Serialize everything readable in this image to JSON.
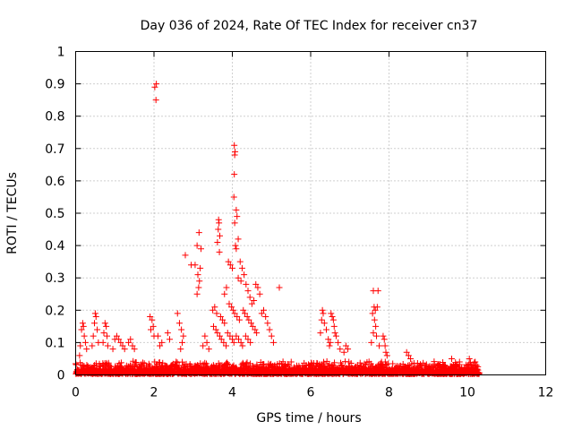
{
  "chart_data": {
    "type": "scatter",
    "title": "Day 036 of 2024, Rate Of TEC Index for receiver cn37",
    "xlabel": "GPS time / hours",
    "ylabel": "ROTI / TECUs",
    "xlim": [
      0,
      12
    ],
    "ylim": [
      0,
      1
    ],
    "grid": true,
    "marker": "+",
    "marker_color": "#ff0000",
    "x_ticks": [
      "0",
      "2",
      "4",
      "6",
      "8",
      "10",
      "12"
    ],
    "y_ticks": [
      "0",
      "0.1",
      "0.2",
      "0.3",
      "0.4",
      "0.5",
      "0.6",
      "0.7",
      "0.8",
      "0.9",
      "1"
    ],
    "series": [
      {
        "name": "cn37",
        "points": [
          [
            2.02,
            0.89
          ],
          [
            2.06,
            0.9
          ],
          [
            2.05,
            0.85
          ],
          [
            4.05,
            0.71
          ],
          [
            4.06,
            0.68
          ],
          [
            4.07,
            0.69
          ],
          [
            4.05,
            0.62
          ],
          [
            4.04,
            0.55
          ],
          [
            4.1,
            0.51
          ],
          [
            4.12,
            0.49
          ],
          [
            4.06,
            0.47
          ],
          [
            4.15,
            0.42
          ],
          [
            4.08,
            0.4
          ],
          [
            4.1,
            0.39
          ],
          [
            3.65,
            0.48
          ],
          [
            3.66,
            0.47
          ],
          [
            3.64,
            0.45
          ],
          [
            3.68,
            0.43
          ],
          [
            3.62,
            0.41
          ],
          [
            3.67,
            0.38
          ],
          [
            3.15,
            0.44
          ],
          [
            3.1,
            0.4
          ],
          [
            3.2,
            0.39
          ],
          [
            3.05,
            0.34
          ],
          [
            3.18,
            0.33
          ],
          [
            3.12,
            0.31
          ],
          [
            3.16,
            0.29
          ],
          [
            3.14,
            0.27
          ],
          [
            3.1,
            0.25
          ],
          [
            2.8,
            0.37
          ],
          [
            2.95,
            0.34
          ],
          [
            3.9,
            0.35
          ],
          [
            3.95,
            0.34
          ],
          [
            4.0,
            0.33
          ],
          [
            4.2,
            0.35
          ],
          [
            4.25,
            0.33
          ],
          [
            4.3,
            0.31
          ],
          [
            4.15,
            0.3
          ],
          [
            4.22,
            0.29
          ],
          [
            4.35,
            0.28
          ],
          [
            3.85,
            0.27
          ],
          [
            4.4,
            0.26
          ],
          [
            3.8,
            0.25
          ],
          [
            4.45,
            0.24
          ],
          [
            4.6,
            0.28
          ],
          [
            4.65,
            0.27
          ],
          [
            4.7,
            0.25
          ],
          [
            4.55,
            0.23
          ],
          [
            4.5,
            0.22
          ],
          [
            5.2,
            0.27
          ],
          [
            3.55,
            0.21
          ],
          [
            3.5,
            0.2
          ],
          [
            3.6,
            0.19
          ],
          [
            3.7,
            0.18
          ],
          [
            3.75,
            0.17
          ],
          [
            3.8,
            0.16
          ],
          [
            3.92,
            0.22
          ],
          [
            3.98,
            0.21
          ],
          [
            4.02,
            0.2
          ],
          [
            4.06,
            0.19
          ],
          [
            4.12,
            0.18
          ],
          [
            4.18,
            0.17
          ],
          [
            4.28,
            0.2
          ],
          [
            4.32,
            0.19
          ],
          [
            4.38,
            0.18
          ],
          [
            4.42,
            0.17
          ],
          [
            4.48,
            0.16
          ],
          [
            4.52,
            0.15
          ],
          [
            4.58,
            0.14
          ],
          [
            4.62,
            0.13
          ],
          [
            3.52,
            0.15
          ],
          [
            3.58,
            0.14
          ],
          [
            3.62,
            0.13
          ],
          [
            3.68,
            0.12
          ],
          [
            3.72,
            0.11
          ],
          [
            3.78,
            0.1
          ],
          [
            3.84,
            0.09
          ],
          [
            3.88,
            0.13
          ],
          [
            3.94,
            0.12
          ],
          [
            4.0,
            0.11
          ],
          [
            4.04,
            0.1
          ],
          [
            4.1,
            0.12
          ],
          [
            4.16,
            0.11
          ],
          [
            4.22,
            0.1
          ],
          [
            4.26,
            0.09
          ],
          [
            4.34,
            0.12
          ],
          [
            4.4,
            0.11
          ],
          [
            4.46,
            0.1
          ],
          [
            4.8,
            0.2
          ],
          [
            4.85,
            0.18
          ],
          [
            4.9,
            0.16
          ],
          [
            4.95,
            0.14
          ],
          [
            5.0,
            0.12
          ],
          [
            4.75,
            0.19
          ],
          [
            5.05,
            0.1
          ],
          [
            3.3,
            0.12
          ],
          [
            3.35,
            0.1
          ],
          [
            3.4,
            0.08
          ],
          [
            3.25,
            0.09
          ],
          [
            2.6,
            0.19
          ],
          [
            2.65,
            0.16
          ],
          [
            2.7,
            0.14
          ],
          [
            2.75,
            0.12
          ],
          [
            2.72,
            0.1
          ],
          [
            2.68,
            0.08
          ],
          [
            2.35,
            0.13
          ],
          [
            2.4,
            0.11
          ],
          [
            2.2,
            0.1
          ],
          [
            2.1,
            0.12
          ],
          [
            2.15,
            0.09
          ],
          [
            1.9,
            0.18
          ],
          [
            1.95,
            0.17
          ],
          [
            1.98,
            0.15
          ],
          [
            1.92,
            0.14
          ],
          [
            2.0,
            0.12
          ],
          [
            0.15,
            0.14
          ],
          [
            0.18,
            0.16
          ],
          [
            0.2,
            0.15
          ],
          [
            0.22,
            0.12
          ],
          [
            0.25,
            0.1
          ],
          [
            0.12,
            0.09
          ],
          [
            0.28,
            0.08
          ],
          [
            0.1,
            0.06
          ],
          [
            0.5,
            0.19
          ],
          [
            0.52,
            0.18
          ],
          [
            0.48,
            0.16
          ],
          [
            0.55,
            0.14
          ],
          [
            0.45,
            0.12
          ],
          [
            0.58,
            0.1
          ],
          [
            0.42,
            0.09
          ],
          [
            0.75,
            0.16
          ],
          [
            0.78,
            0.15
          ],
          [
            0.72,
            0.13
          ],
          [
            0.8,
            0.12
          ],
          [
            0.7,
            0.1
          ],
          [
            0.82,
            0.09
          ],
          [
            1.0,
            0.11
          ],
          [
            1.05,
            0.12
          ],
          [
            1.1,
            0.11
          ],
          [
            1.15,
            0.1
          ],
          [
            1.2,
            0.09
          ],
          [
            0.95,
            0.08
          ],
          [
            1.25,
            0.08
          ],
          [
            1.35,
            0.1
          ],
          [
            1.4,
            0.11
          ],
          [
            1.45,
            0.09
          ],
          [
            1.5,
            0.08
          ],
          [
            6.3,
            0.2
          ],
          [
            6.32,
            0.19
          ],
          [
            6.28,
            0.17
          ],
          [
            6.35,
            0.16
          ],
          [
            6.4,
            0.14
          ],
          [
            6.25,
            0.13
          ],
          [
            6.45,
            0.11
          ],
          [
            6.5,
            0.1
          ],
          [
            6.52,
            0.19
          ],
          [
            6.55,
            0.18
          ],
          [
            6.58,
            0.17
          ],
          [
            6.6,
            0.15
          ],
          [
            6.62,
            0.13
          ],
          [
            6.65,
            0.12
          ],
          [
            6.7,
            0.1
          ],
          [
            6.75,
            0.08
          ],
          [
            6.48,
            0.09
          ],
          [
            6.9,
            0.09
          ],
          [
            6.95,
            0.08
          ],
          [
            6.85,
            0.07
          ],
          [
            7.6,
            0.26
          ],
          [
            7.72,
            0.26
          ],
          [
            7.62,
            0.21
          ],
          [
            7.65,
            0.2
          ],
          [
            7.7,
            0.21
          ],
          [
            7.58,
            0.19
          ],
          [
            7.63,
            0.17
          ],
          [
            7.66,
            0.15
          ],
          [
            7.6,
            0.13
          ],
          [
            7.68,
            0.12
          ],
          [
            7.55,
            0.1
          ],
          [
            7.75,
            0.09
          ],
          [
            7.85,
            0.12
          ],
          [
            7.88,
            0.11
          ],
          [
            7.9,
            0.09
          ],
          [
            7.92,
            0.07
          ],
          [
            7.95,
            0.06
          ],
          [
            8.45,
            0.07
          ],
          [
            8.5,
            0.06
          ],
          [
            8.55,
            0.05
          ],
          [
            9.6,
            0.05
          ],
          [
            9.8,
            0.04
          ],
          [
            10.05,
            0.05
          ],
          [
            10.2,
            0.04
          ]
        ]
      }
    ]
  }
}
